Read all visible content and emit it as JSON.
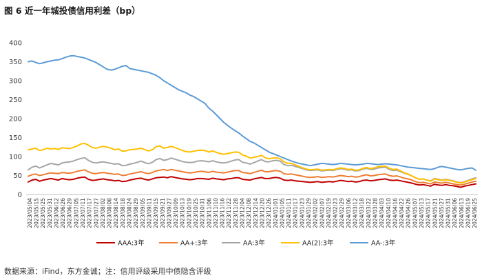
{
  "figure": {
    "title": "图 6   近一年城投债信用利差（bp）",
    "source_note": "数据来源：iFind，东方金诚；注：信用评级采用中债隐含评级"
  },
  "chart_data": {
    "type": "line",
    "ylim": [
      0,
      400
    ],
    "y_ticks": [
      0,
      50,
      100,
      150,
      200,
      250,
      300,
      350,
      400
    ],
    "x_tick_labels": [
      "2023/05/04",
      "2023/05/15",
      "2023/05/25",
      "2023/05/31",
      "2023/06/12",
      "2023/06/26",
      "2023/06/29",
      "2023/07/05",
      "2023/07/11",
      "2023/07/17",
      "2023/07/27",
      "2023/08/02",
      "2023/08/08",
      "2023/08/14",
      "2023/08/18",
      "2023/08/24",
      "2023/08/29",
      "2023/09/05",
      "2023/09/11",
      "2023/09/15",
      "2023/09/21",
      "2023/09/27",
      "2023/10/09",
      "2023/10/13",
      "2023/10/19",
      "2023/10/25",
      "2023/10/31",
      "2023/11/06",
      "2023/11/10",
      "2023/11/16",
      "2023/11/22",
      "2023/11/28",
      "2023/12/04",
      "2023/12/08",
      "2023/12/14",
      "2023/12/20",
      "2023/12/26",
      "2024/01/01",
      "2024/01/05",
      "2024/01/11",
      "2024/01/17",
      "2024/01/23",
      "2024/01/29",
      "2024/02/02",
      "2024/02/07",
      "2024/02/19",
      "2024/02/23",
      "2024/02/29",
      "2024/03/06",
      "2024/03/12",
      "2024/03/18",
      "2024/03/22",
      "2024/03/28",
      "2024/04/03",
      "2024/04/10",
      "2024/04/16",
      "2024/04/22",
      "2024/04/26",
      "2024/05/07",
      "2024/05/13",
      "2024/05/17",
      "2024/05/21",
      "2024/05/27",
      "2024/05/31",
      "2024/06/06",
      "2024/06/13",
      "2024/06/19",
      "2024/06/25"
    ],
    "grid": false,
    "legend_position": "bottom",
    "series": [
      {
        "name": "AAA:3年",
        "color": "#c00000",
        "values": [
          33,
          38,
          40,
          35,
          38,
          40,
          42,
          40,
          38,
          42,
          40,
          39,
          40,
          43,
          45,
          46,
          40,
          37,
          38,
          40,
          41,
          39,
          38,
          36,
          37,
          34,
          35,
          38,
          40,
          42,
          43,
          40,
          38,
          41,
          44,
          45,
          46,
          44,
          47,
          45,
          43,
          41,
          40,
          39,
          40,
          42,
          42,
          41,
          40,
          43,
          41,
          40,
          39,
          41,
          42,
          44,
          44,
          40,
          39,
          38,
          41,
          43,
          45,
          42,
          42,
          44,
          45,
          43,
          38,
          37,
          38,
          36,
          35,
          34,
          33,
          32,
          33,
          34,
          32,
          33,
          34,
          33,
          35,
          37,
          36,
          34,
          35,
          33,
          34,
          37,
          38,
          36,
          37,
          39,
          40,
          41,
          38,
          37,
          38,
          36,
          34,
          32,
          30,
          27,
          25,
          26,
          24,
          22,
          27,
          25,
          24,
          26,
          24,
          23,
          21,
          19,
          22,
          24,
          26,
          28
        ]
      },
      {
        "name": "AA+:3年",
        "color": "#ed7d31",
        "values": [
          48,
          52,
          54,
          50,
          52,
          55,
          57,
          56,
          55,
          58,
          57,
          56,
          58,
          61,
          63,
          65,
          60,
          56,
          55,
          57,
          58,
          56,
          55,
          53,
          54,
          50,
          51,
          54,
          56,
          58,
          60,
          57,
          55,
          58,
          62,
          64,
          66,
          63,
          66,
          64,
          62,
          60,
          58,
          57,
          58,
          60,
          61,
          60,
          58,
          61,
          59,
          58,
          57,
          59,
          61,
          63,
          63,
          58,
          57,
          55,
          58,
          61,
          64,
          60,
          60,
          62,
          63,
          61,
          55,
          53,
          54,
          52,
          50,
          48,
          46,
          45,
          46,
          47,
          45,
          46,
          47,
          46,
          48,
          50,
          49,
          47,
          48,
          46,
          47,
          50,
          52,
          49,
          50,
          52,
          53,
          54,
          50,
          48,
          49,
          46,
          43,
          41,
          38,
          34,
          31,
          32,
          30,
          28,
          33,
          31,
          30,
          32,
          30,
          28,
          26,
          25,
          27,
          30,
          33,
          35
        ]
      },
      {
        "name": "AA:3年",
        "color": "#a5a5a5",
        "values": [
          65,
          72,
          75,
          70,
          74,
          78,
          82,
          80,
          78,
          83,
          85,
          86,
          88,
          92,
          95,
          97,
          90,
          85,
          83,
          85,
          86,
          84,
          82,
          80,
          81,
          76,
          77,
          80,
          82,
          85,
          88,
          84,
          81,
          85,
          92,
          95,
          90,
          92,
          96,
          93,
          90,
          87,
          85,
          84,
          85,
          88,
          89,
          88,
          86,
          89,
          86,
          84,
          83,
          85,
          88,
          91,
          92,
          85,
          83,
          80,
          84,
          88,
          92,
          87,
          86,
          89,
          90,
          88,
          79,
          76,
          77,
          74,
          71,
          68,
          65,
          63,
          64,
          65,
          62,
          63,
          64,
          63,
          66,
          68,
          67,
          64,
          65,
          62,
          63,
          67,
          69,
          66,
          67,
          70,
          71,
          72,
          66,
          63,
          64,
          60,
          56,
          53,
          49,
          44,
          40,
          41,
          38,
          36,
          42,
          40,
          38,
          40,
          38,
          36,
          33,
          31,
          34,
          37,
          41,
          44
        ]
      },
      {
        "name": "AA(2):3年",
        "color": "#ffc000",
        "values": [
          118,
          120,
          122,
          116,
          118,
          122,
          120,
          121,
          119,
          123,
          122,
          121,
          124,
          128,
          133,
          135,
          130,
          124,
          122,
          125,
          127,
          125,
          122,
          118,
          120,
          114,
          115,
          118,
          119,
          120,
          122,
          118,
          115,
          118,
          126,
          128,
          122,
          124,
          127,
          124,
          120,
          116,
          113,
          112,
          114,
          116,
          117,
          116,
          112,
          115,
          111,
          108,
          106,
          108,
          110,
          112,
          111,
          104,
          101,
          96,
          98,
          100,
          103,
          97,
          94,
          96,
          97,
          94,
          86,
          82,
          82,
          78,
          74,
          70,
          67,
          65,
          66,
          67,
          64,
          65,
          66,
          65,
          68,
          70,
          69,
          66,
          67,
          64,
          65,
          69,
          71,
          68,
          70,
          73,
          74,
          75,
          69,
          66,
          67,
          62,
          57,
          54,
          49,
          44,
          40,
          41,
          38,
          35,
          41,
          39,
          37,
          39,
          37,
          35,
          32,
          30,
          33,
          36,
          39,
          42
        ]
      },
      {
        "name": "AA-:3年",
        "color": "#5b9bd5",
        "values": [
          350,
          352,
          348,
          345,
          347,
          350,
          352,
          354,
          355,
          358,
          362,
          365,
          366,
          364,
          362,
          360,
          356,
          352,
          348,
          342,
          336,
          330,
          328,
          330,
          334,
          338,
          340,
          332,
          330,
          328,
          326,
          324,
          322,
          318,
          314,
          308,
          300,
          294,
          288,
          282,
          276,
          272,
          268,
          262,
          258,
          252,
          246,
          240,
          228,
          220,
          210,
          200,
          190,
          182,
          175,
          168,
          162,
          154,
          147,
          140,
          136,
          130,
          124,
          118,
          112,
          108,
          104,
          100,
          96,
          92,
          88,
          85,
          82,
          80,
          78,
          76,
          78,
          80,
          82,
          81,
          80,
          79,
          80,
          82,
          81,
          80,
          79,
          78,
          79,
          80,
          82,
          81,
          80,
          79,
          80,
          81,
          80,
          79,
          78,
          76,
          74,
          72,
          71,
          70,
          69,
          68,
          67,
          66,
          68,
          72,
          74,
          72,
          70,
          68,
          66,
          65,
          67,
          69,
          70,
          64
        ]
      }
    ]
  }
}
